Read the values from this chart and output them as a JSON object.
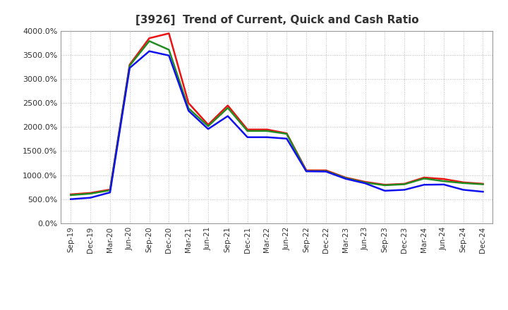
{
  "title": "[3926]  Trend of Current, Quick and Cash Ratio",
  "x_labels": [
    "Sep-19",
    "Dec-19",
    "Mar-20",
    "Jun-20",
    "Sep-20",
    "Dec-20",
    "Mar-21",
    "Jun-21",
    "Sep-21",
    "Dec-21",
    "Mar-22",
    "Jun-22",
    "Sep-22",
    "Dec-22",
    "Mar-23",
    "Jun-23",
    "Sep-23",
    "Dec-23",
    "Mar-24",
    "Jun-24",
    "Sep-24",
    "Dec-24"
  ],
  "current_ratio": [
    600,
    630,
    700,
    3300,
    3850,
    3950,
    2500,
    2050,
    2450,
    1950,
    1950,
    1870,
    1100,
    1100,
    950,
    860,
    800,
    820,
    950,
    920,
    850,
    820
  ],
  "quick_ratio": [
    585,
    615,
    685,
    3280,
    3790,
    3610,
    2390,
    2020,
    2400,
    1920,
    1920,
    1860,
    1085,
    1085,
    940,
    845,
    790,
    810,
    930,
    875,
    835,
    810
  ],
  "cash_ratio": [
    500,
    530,
    640,
    3230,
    3580,
    3490,
    2340,
    1960,
    2230,
    1790,
    1790,
    1760,
    1080,
    1075,
    925,
    830,
    675,
    695,
    800,
    805,
    695,
    655
  ],
  "current_color": "#EE1111",
  "quick_color": "#228B22",
  "cash_color": "#1111EE",
  "background_color": "#FFFFFF",
  "grid_color": "#BBBBBB",
  "ylim": [
    0,
    4000
  ],
  "yticks": [
    0,
    500,
    1000,
    1500,
    2000,
    2500,
    3000,
    3500,
    4000
  ],
  "title_color": "#333333",
  "tick_color": "#333333",
  "line_width": 1.8
}
